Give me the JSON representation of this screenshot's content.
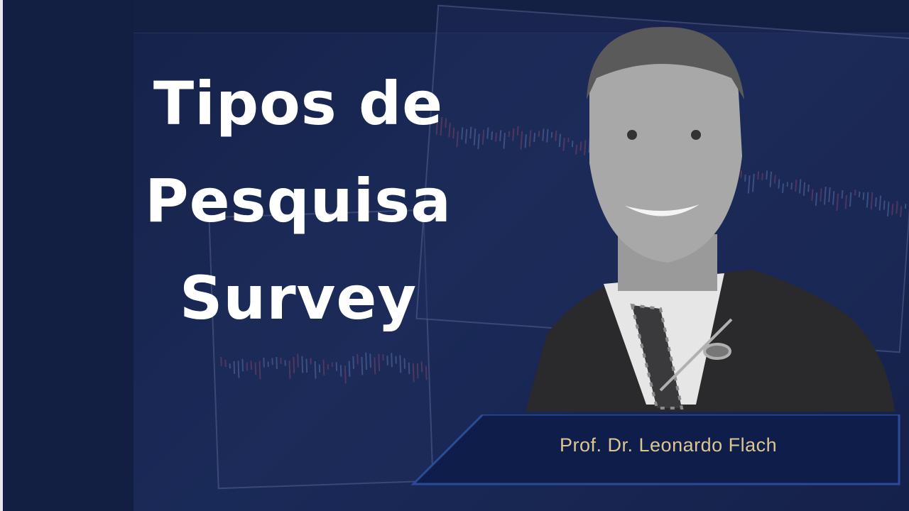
{
  "title": {
    "line1": "Tipos de",
    "line2": "Pesquisa",
    "line3": "Survey"
  },
  "presenter": {
    "name": "Prof. Dr. Leonardo Flach"
  },
  "colors": {
    "background": "#131f42",
    "title": "#ffffff",
    "name_text": "#dcc690",
    "plate": "#0f1d4a"
  }
}
